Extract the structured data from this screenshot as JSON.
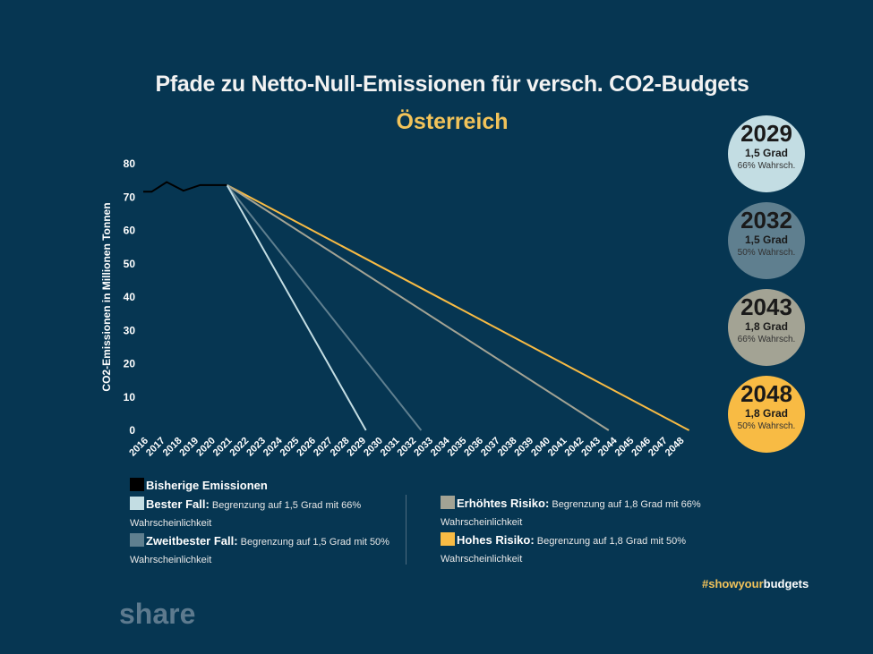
{
  "header": {
    "title": "Pfade zu Netto-Null-Emissionen für versch. CO2-Budgets",
    "subtitle": "Österreich"
  },
  "chart_data": {
    "type": "line",
    "title": "Pfade zu Netto-Null-Emissionen für versch. CO2-Budgets",
    "subtitle": "Österreich",
    "xlabel": "",
    "ylabel": "CO2-Emissionen in Millionen Tonnen",
    "ylim": [
      0,
      80
    ],
    "yticks": [
      0,
      10,
      20,
      30,
      40,
      50,
      60,
      70,
      80
    ],
    "xticks": [
      "2016",
      "2017",
      "2018",
      "2019",
      "2020",
      "2021",
      "2022",
      "2023",
      "2024",
      "2025",
      "2026",
      "2027",
      "2028",
      "2029",
      "2030",
      "2031",
      "2032",
      "2033",
      "2034",
      "2035",
      "2036",
      "2037",
      "2038",
      "2039",
      "2040",
      "2041",
      "2042",
      "2043",
      "2044",
      "2045",
      "2046",
      "2047",
      "2048"
    ],
    "grid": false,
    "historical": {
      "name": "Bisherige Emissionen",
      "color": "#000000",
      "x": [
        2016,
        2016.5,
        2017.4,
        2018.4,
        2019.4,
        2020.4,
        2021
      ],
      "y": [
        71.6,
        71.6,
        74.5,
        71.9,
        73.6,
        73.6,
        73.6
      ]
    },
    "series": [
      {
        "name": "Bester Fall",
        "color": "#c3dde3",
        "x": [
          2021,
          2029.3
        ],
        "y": [
          73.6,
          0
        ]
      },
      {
        "name": "Zweitbester Fall",
        "color": "#5f7f8f",
        "x": [
          2021,
          2032.6
        ],
        "y": [
          73.6,
          0
        ]
      },
      {
        "name": "Erhöhtes Risiko",
        "color": "#a3a394",
        "x": [
          2021,
          2043.8
        ],
        "y": [
          73.6,
          0
        ]
      },
      {
        "name": "Hohes Risiko",
        "color": "#f8bb44",
        "x": [
          2021,
          2048.6
        ],
        "y": [
          73.6,
          0
        ]
      }
    ]
  },
  "badges": [
    {
      "year": "2029",
      "degree": "1,5 Grad",
      "prob": "66% Wahrsch.",
      "color": "#c3dde3"
    },
    {
      "year": "2032",
      "degree": "1,5 Grad",
      "prob": "50% Wahrsch.",
      "color": "#5f7f8f"
    },
    {
      "year": "2043",
      "degree": "1,8 Grad",
      "prob": "66% Wahrsch.",
      "color": "#a3a394"
    },
    {
      "year": "2048",
      "degree": "1,8 Grad",
      "prob": "50% Wahrsch.",
      "color": "#f8bb44"
    }
  ],
  "legend": {
    "left": [
      {
        "label": "Bisherige Emissionen",
        "desc": "",
        "cont": "",
        "color": "#000000"
      },
      {
        "label": "Bester Fall:",
        "desc": " Begrenzung auf 1,5 Grad mit 66%",
        "cont": "Wahrscheinlichkeit",
        "color": "#c3dde3"
      },
      {
        "label": "Zweitbester Fall:",
        "desc": " Begrenzung auf 1,5 Grad mit 50%",
        "cont": "Wahrscheinlichkeit",
        "color": "#5f7f8f"
      }
    ],
    "right": [
      {
        "label": "Erhöhtes Risiko:",
        "desc": " Begrenzung auf 1,8 Grad mit 66%",
        "cont": "Wahrscheinlichkeit",
        "color": "#a3a394"
      },
      {
        "label": "Hohes Risiko:",
        "desc": " Begrenzung auf 1,8 Grad mit 50%",
        "cont": "Wahrscheinlichkeit",
        "color": "#f8bb44"
      }
    ]
  },
  "footer": {
    "hashtag_a": "#showyour",
    "hashtag_b": "budgets",
    "hashtag_a_color": "#f1c35a",
    "share": "share"
  }
}
